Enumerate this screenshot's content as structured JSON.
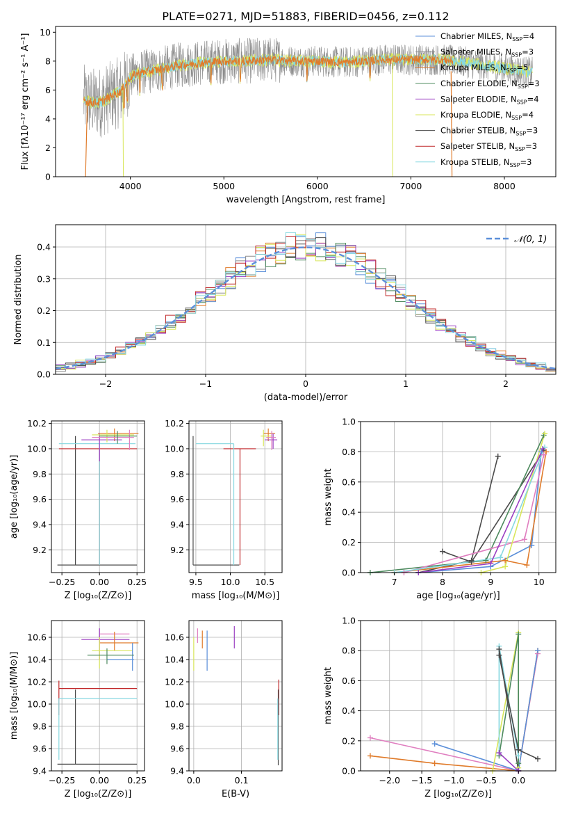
{
  "figure_title": "PLATE=0271, MJD=51883, FIBERID=0456, z=0.112",
  "colors": {
    "chabrier_miles": "#5b8fd9",
    "salpeter_miles": "#8c8c8c",
    "kroupa_miles": "#e07b2a",
    "chabrier_elodie": "#4d8a5e",
    "salpeter_elodie": "#9b3fc2",
    "kroupa_elodie": "#d8e65a",
    "chabrier_stelib": "#4a4a4a",
    "salpeter_stelib": "#c0282a",
    "kroupa_stelib": "#86d8e0",
    "pink": "#e07fc0",
    "normal": "#5b8fd9"
  },
  "chart_data": [
    {
      "type": "line",
      "panel": "spectrum",
      "xlabel": "wavelength [Angstrom, rest frame]",
      "ylabel": "Flux [fλ10⁻¹⁷ erg cm⁻² s⁻¹ A⁻¹]",
      "xlim": [
        3200,
        8550
      ],
      "ylim": [
        0,
        10.4
      ],
      "xticks": [
        "4000",
        "5000",
        "6000",
        "7000",
        "8000"
      ],
      "yticks": [
        "0",
        "2",
        "4",
        "6",
        "8",
        "10"
      ],
      "legend": {
        "position": "right",
        "entries": [
          {
            "label": "Chabrier MILES, N",
            "sub": "SSP",
            "suffix": "=4",
            "color_key": "chabrier_miles"
          },
          {
            "label": "Salpeter MILES, N",
            "sub": "SSP",
            "suffix": "=3",
            "color_key": "salpeter_miles"
          },
          {
            "label": "Kroupa MILES, N",
            "sub": "SSP",
            "suffix": "=5",
            "color_key": "kroupa_miles"
          },
          {
            "label": "Chabrier ELODIE, N",
            "sub": "SSP",
            "suffix": "=3",
            "color_key": "chabrier_elodie"
          },
          {
            "label": "Salpeter ELODIE, N",
            "sub": "SSP",
            "suffix": "=4",
            "color_key": "salpeter_elodie"
          },
          {
            "label": "Kroupa ELODIE, N",
            "sub": "SSP",
            "suffix": "=4",
            "color_key": "kroupa_elodie"
          },
          {
            "label": "Chabrier STELIB, N",
            "sub": "SSP",
            "suffix": "=3",
            "color_key": "chabrier_stelib"
          },
          {
            "label": "Salpeter STELIB, N",
            "sub": "SSP",
            "suffix": "=3",
            "color_key": "salpeter_stelib"
          },
          {
            "label": "Kroupa STELIB, N",
            "sub": "SSP",
            "suffix": "=3",
            "color_key": "kroupa_stelib"
          }
        ]
      },
      "continuum": {
        "x": [
          3500,
          3600,
          3700,
          3800,
          3900,
          3950,
          4000,
          4100,
          4300,
          4500,
          4800,
          5000,
          5200,
          5500,
          5800,
          6000,
          6300,
          6500,
          6700,
          6900,
          7100,
          7300,
          7500,
          7700,
          7900,
          8100,
          8300
        ],
        "y": [
          5.3,
          5.1,
          5.2,
          5.6,
          5.9,
          6.4,
          6.9,
          7.2,
          7.4,
          7.7,
          7.9,
          8.0,
          8.0,
          8.1,
          8.0,
          8.0,
          7.9,
          8.0,
          8.1,
          8.1,
          8.1,
          8.1,
          8.0,
          7.8,
          7.6,
          7.4,
          7.2
        ]
      },
      "model_extents": {
        "salpeter_miles_observed": [
          3500,
          8300
        ],
        "models": [
          3500,
          7500
        ],
        "kroupa_stelib_upto": [
          3500,
          8300
        ]
      }
    },
    {
      "type": "bar",
      "panel": "residual-histogram",
      "xlabel": "(data-model)/error",
      "ylabel": "Normed distribution",
      "xlim": [
        -2.5,
        2.5
      ],
      "ylim": [
        0,
        0.47
      ],
      "xticks": [
        "−2",
        "−1",
        "0",
        "1",
        "2"
      ],
      "yticks": [
        "0.0",
        "0.1",
        "0.2",
        "0.3",
        "0.4"
      ],
      "grid": true,
      "bin_width": 0.1,
      "reference_curve": {
        "name": "N(0, 1)",
        "mean": 0,
        "sigma": 1
      },
      "legend": {
        "position": "top-right",
        "label": "𝒩(0, 1)"
      }
    },
    {
      "type": "scatter",
      "panel": "age-vs-Z",
      "xlabel": "Z [log₁₀(Z/Z⊙)]",
      "ylabel": "age  [log₁₀(age/yr)]",
      "xlim": [
        -0.32,
        0.3
      ],
      "ylim": [
        9.02,
        10.22
      ],
      "xticks": [
        "−0.25",
        "0.00",
        "0.25"
      ],
      "yticks": [
        "9.2",
        "9.4",
        "9.6",
        "9.8",
        "10.0",
        "10.2"
      ],
      "grid": true,
      "crosses": [
        {
          "c": "chabrier_stelib",
          "x": -0.16,
          "xlo": -0.28,
          "xhi": 0.25,
          "y": 9.08,
          "ylo": 9.08,
          "yhi": 10.1
        },
        {
          "c": "salpeter_stelib",
          "x": 0.0,
          "xlo": -0.27,
          "xhi": 0.25,
          "y": 10.0,
          "ylo": 9.08,
          "yhi": 10.0
        },
        {
          "c": "kroupa_stelib",
          "x": 0.0,
          "xlo": -0.27,
          "xhi": 0.24,
          "y": 10.04,
          "ylo": 9.08,
          "yhi": 10.04
        },
        {
          "c": "kroupa_miles",
          "x": 0.1,
          "xlo": -0.01,
          "xhi": 0.26,
          "y": 10.12,
          "ylo": 10.06,
          "yhi": 10.16
        },
        {
          "c": "salpeter_elodie",
          "x": 0.0,
          "xlo": -0.12,
          "xhi": 0.15,
          "y": 10.07,
          "ylo": 9.9,
          "yhi": 10.12
        },
        {
          "c": "kroupa_elodie",
          "x": 0.05,
          "xlo": -0.05,
          "xhi": 0.23,
          "y": 10.11,
          "ylo": 10.05,
          "yhi": 10.15
        },
        {
          "c": "pink",
          "x": 0.2,
          "xlo": -0.05,
          "xhi": 0.23,
          "y": 10.09,
          "ylo": 9.99,
          "yhi": 10.15
        },
        {
          "c": "chabrier_elodie",
          "x": 0.12,
          "xlo": 0.0,
          "xhi": 0.25,
          "y": 10.1,
          "ylo": 10.04,
          "yhi": 10.14
        }
      ]
    },
    {
      "type": "scatter",
      "panel": "age-vs-mass",
      "xlabel": "mass [log₁₀(M/M⊙)]",
      "ylabel": "",
      "xlim": [
        9.4,
        10.75
      ],
      "ylim": [
        9.02,
        10.22
      ],
      "xticks": [
        "9.5",
        "10.0",
        "10.5"
      ],
      "yticks": [
        "9.2",
        "9.4",
        "9.6",
        "9.8",
        "10.0",
        "10.2"
      ],
      "grid": true,
      "crosses": [
        {
          "c": "chabrier_stelib",
          "x": 9.46,
          "xlo": 9.46,
          "xhi": 10.13,
          "y": 9.08,
          "ylo": 9.08,
          "yhi": 10.1
        },
        {
          "c": "salpeter_stelib",
          "x": 10.14,
          "xlo": 9.9,
          "xhi": 10.37,
          "y": 10.0,
          "ylo": 9.08,
          "yhi": 10.0
        },
        {
          "c": "kroupa_stelib",
          "x": 10.05,
          "xlo": 9.5,
          "xhi": 10.05,
          "y": 10.04,
          "ylo": 9.08,
          "yhi": 10.04
        },
        {
          "c": "kroupa_miles",
          "x": 10.55,
          "xlo": 10.48,
          "xhi": 10.65,
          "y": 10.12,
          "ylo": 10.06,
          "yhi": 10.16
        },
        {
          "c": "salpeter_elodie",
          "x": 10.62,
          "xlo": 10.5,
          "xhi": 10.68,
          "y": 10.07,
          "ylo": 10.0,
          "yhi": 10.12
        },
        {
          "c": "kroupa_elodie",
          "x": 10.48,
          "xlo": 10.44,
          "xhi": 10.6,
          "y": 10.1,
          "ylo": 10.02,
          "yhi": 10.15
        },
        {
          "c": "pink",
          "x": 10.6,
          "xlo": 10.52,
          "xhi": 10.66,
          "y": 10.09,
          "ylo": 9.99,
          "yhi": 10.14
        }
      ]
    },
    {
      "type": "line",
      "panel": "mass-weight-vs-age",
      "xlabel": "age  [log₁₀(age/yr)]",
      "ylabel": "mass weight",
      "xlim": [
        6.3,
        10.35
      ],
      "ylim": [
        0,
        1.0
      ],
      "xticks": [
        "7",
        "8",
        "9",
        "10"
      ],
      "yticks": [
        "0.0",
        "0.2",
        "0.4",
        "0.6",
        "0.8",
        "1.0"
      ],
      "grid": true,
      "series": [
        {
          "c": "chabrier_stelib",
          "x": [
            7.5,
            8.6,
            9.15
          ],
          "y": [
            0.0,
            0.08,
            0.77
          ]
        },
        {
          "c": "chabrier_stelib",
          "x": [
            8.0,
            8.6,
            10.1
          ],
          "y": [
            0.14,
            0.07,
            0.81
          ]
        },
        {
          "c": "chabrier_elodie",
          "x": [
            6.5,
            8.9,
            10.1
          ],
          "y": [
            0.0,
            0.08,
            0.91
          ]
        },
        {
          "c": "chabrier_miles",
          "x": [
            7.5,
            9.0,
            9.85,
            10.05
          ],
          "y": [
            0.0,
            0.04,
            0.18,
            0.8
          ]
        },
        {
          "c": "kroupa_miles",
          "x": [
            7.0,
            9.3,
            9.75,
            10.15
          ],
          "y": [
            0.0,
            0.08,
            0.05,
            0.8
          ]
        },
        {
          "c": "pink",
          "x": [
            7.2,
            9.7,
            10.1
          ],
          "y": [
            0.0,
            0.22,
            0.78
          ]
        },
        {
          "c": "kroupa_elodie",
          "x": [
            8.8,
            9.3,
            10.12
          ],
          "y": [
            0.0,
            0.04,
            0.92
          ]
        },
        {
          "c": "kroupa_stelib",
          "x": [
            7.0,
            9.2,
            10.12
          ],
          "y": [
            0.0,
            0.1,
            0.83
          ]
        },
        {
          "c": "salpeter_elodie",
          "x": [
            7.5,
            9.0,
            10.08
          ],
          "y": [
            0.0,
            0.06,
            0.82
          ]
        }
      ]
    },
    {
      "type": "scatter",
      "panel": "mass-vs-Z",
      "xlabel": "Z [log₁₀(Z/Z⊙)]",
      "ylabel": "mass [log₁₀(M/M⊙)]",
      "xlim": [
        -0.32,
        0.3
      ],
      "ylim": [
        9.4,
        10.75
      ],
      "xticks": [
        "−0.25",
        "0.00",
        "0.25"
      ],
      "yticks": [
        "9.4",
        "9.6",
        "9.8",
        "10.0",
        "10.2",
        "10.4",
        "10.6"
      ],
      "grid": true,
      "crosses": [
        {
          "c": "chabrier_stelib",
          "x": -0.16,
          "xlo": -0.28,
          "xhi": 0.25,
          "y": 9.46,
          "ylo": 9.46,
          "yhi": 10.13
        },
        {
          "c": "salpeter_stelib",
          "x": -0.27,
          "xlo": -0.27,
          "xhi": 0.25,
          "y": 10.14,
          "ylo": 9.9,
          "yhi": 10.21
        },
        {
          "c": "kroupa_stelib",
          "x": -0.27,
          "xlo": -0.27,
          "xhi": 0.25,
          "y": 10.05,
          "ylo": 9.5,
          "yhi": 10.05
        },
        {
          "c": "pink",
          "x": 0.0,
          "xlo": 0.0,
          "xhi": 0.2,
          "y": 10.63,
          "ylo": 10.55,
          "yhi": 10.68
        },
        {
          "c": "salpeter_elodie",
          "x": 0.0,
          "xlo": -0.12,
          "xhi": 0.2,
          "y": 10.58,
          "ylo": 10.4,
          "yhi": 10.68
        },
        {
          "c": "kroupa_miles",
          "x": 0.1,
          "xlo": 0.0,
          "xhi": 0.26,
          "y": 10.55,
          "ylo": 10.48,
          "yhi": 10.65
        },
        {
          "c": "kroupa_elodie",
          "x": 0.0,
          "xlo": -0.05,
          "xhi": 0.22,
          "y": 10.48,
          "ylo": 10.32,
          "yhi": 10.6
        },
        {
          "c": "chabrier_miles",
          "x": 0.22,
          "xlo": 0.05,
          "xhi": 0.23,
          "y": 10.4,
          "ylo": 10.3,
          "yhi": 10.55
        },
        {
          "c": "chabrier_elodie",
          "x": 0.05,
          "xlo": -0.08,
          "xhi": 0.23,
          "y": 10.44,
          "ylo": 10.36,
          "yhi": 10.5
        }
      ]
    },
    {
      "type": "scatter",
      "panel": "mass-vs-EBV",
      "xlabel": "E(B-V)",
      "ylabel": "",
      "xlim": [
        -0.01,
        0.185
      ],
      "ylim": [
        9.4,
        10.75
      ],
      "xticks": [
        "0.0",
        "0.1"
      ],
      "yticks": [
        "9.4",
        "9.6",
        "9.8",
        "10.0",
        "10.2",
        "10.4",
        "10.6"
      ],
      "grid": true,
      "vbars": [
        {
          "c": "kroupa_elodie",
          "x": 0.0,
          "ylo": 10.3,
          "yhi": 10.6
        },
        {
          "c": "pink",
          "x": 0.008,
          "ylo": 10.55,
          "yhi": 10.68
        },
        {
          "c": "kroupa_miles",
          "x": 0.018,
          "ylo": 10.5,
          "yhi": 10.66
        },
        {
          "c": "chabrier_miles",
          "x": 0.028,
          "ylo": 10.3,
          "yhi": 10.66
        },
        {
          "c": "salpeter_elodie",
          "x": 0.085,
          "ylo": 10.5,
          "yhi": 10.7
        },
        {
          "c": "salpeter_stelib",
          "x": 0.178,
          "ylo": 9.9,
          "yhi": 10.22
        },
        {
          "c": "chabrier_stelib",
          "x": 0.177,
          "ylo": 9.45,
          "yhi": 10.13
        },
        {
          "c": "kroupa_stelib",
          "x": 0.176,
          "ylo": 9.5,
          "yhi": 10.05
        }
      ]
    },
    {
      "type": "line",
      "panel": "mass-weight-vs-Z",
      "xlabel": "Z [log₁₀(Z/Z⊙)]",
      "ylabel": "mass weight",
      "xlim": [
        -2.45,
        0.58
      ],
      "ylim": [
        0,
        1.0
      ],
      "xticks": [
        "−2.0",
        "−1.5",
        "−1.0",
        "−0.5",
        "0.0"
      ],
      "yticks": [
        "0.0",
        "0.2",
        "0.4",
        "0.6",
        "0.8",
        "1.0"
      ],
      "grid": true,
      "series": [
        {
          "c": "pink",
          "x": [
            -2.3,
            0.0,
            0.3
          ],
          "y": [
            0.22,
            0.0,
            0.78
          ]
        },
        {
          "c": "kroupa_miles",
          "x": [
            -2.3,
            -1.3,
            0.0,
            0.3
          ],
          "y": [
            0.1,
            0.05,
            0.0,
            0.8
          ]
        },
        {
          "c": "chabrier_miles",
          "x": [
            -1.3,
            0.0,
            0.3
          ],
          "y": [
            0.18,
            0.0,
            0.8
          ]
        },
        {
          "c": "kroupa_elodie",
          "x": [
            -0.4,
            0.0,
            0.0
          ],
          "y": [
            0.0,
            0.92,
            0.02
          ]
        },
        {
          "c": "chabrier_elodie",
          "x": [
            -0.3,
            0.0,
            0.0
          ],
          "y": [
            0.1,
            0.91,
            0.05
          ]
        },
        {
          "c": "kroupa_stelib",
          "x": [
            -0.3,
            -0.3,
            0.0
          ],
          "y": [
            0.12,
            0.83,
            0.1
          ]
        },
        {
          "c": "chabrier_stelib",
          "x": [
            -0.3,
            0.0,
            0.3
          ],
          "y": [
            0.77,
            0.14,
            0.08
          ]
        },
        {
          "c": "chabrier_stelib",
          "x": [
            -0.3,
            0.0
          ],
          "y": [
            0.81,
            0.0
          ]
        },
        {
          "c": "salpeter_elodie",
          "x": [
            -0.3,
            0.0
          ],
          "y": [
            0.12,
            0.0
          ]
        }
      ]
    }
  ]
}
